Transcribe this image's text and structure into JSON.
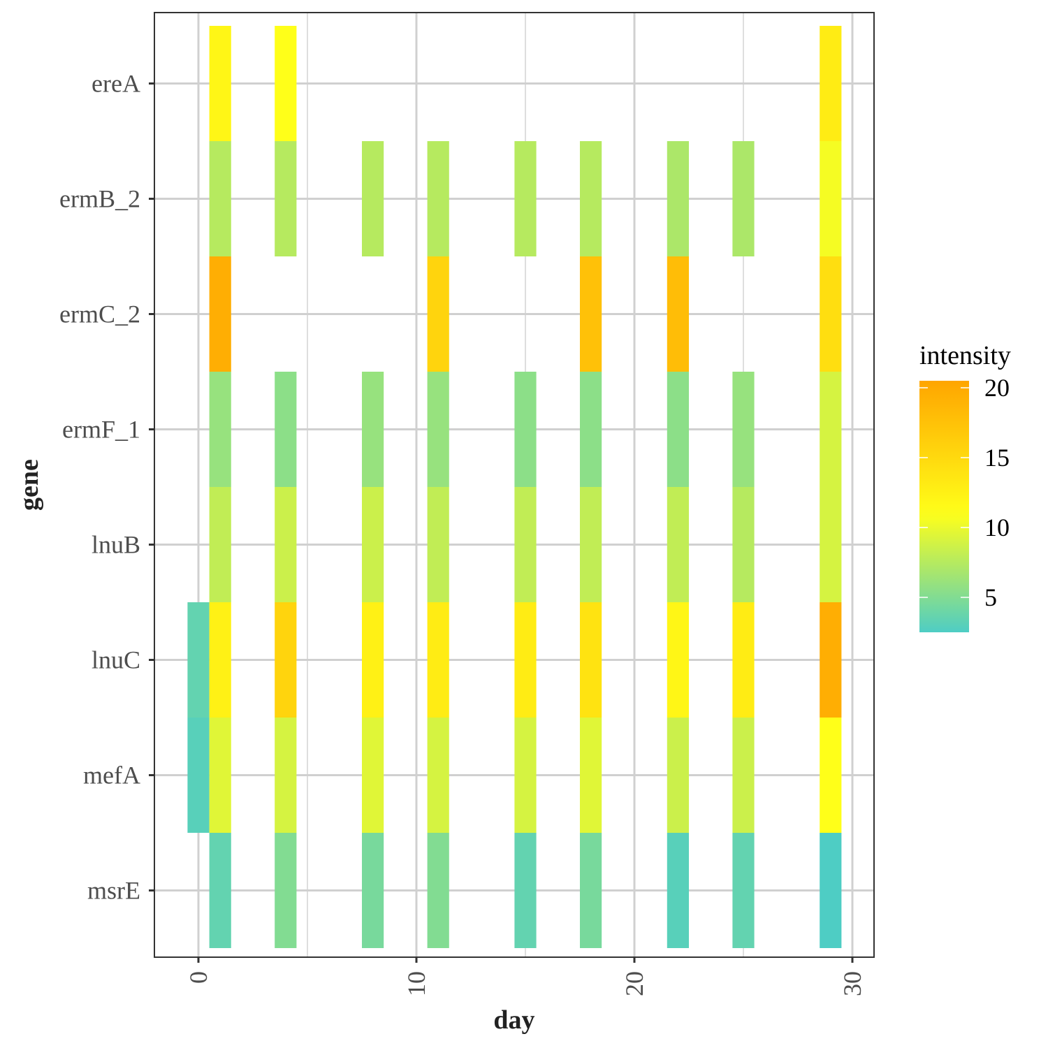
{
  "chart_data": {
    "type": "heatmap",
    "xlabel": "day",
    "ylabel": "gene",
    "xlim": [
      -2,
      31
    ],
    "x_ticks": [
      0,
      10,
      20,
      30
    ],
    "x_tick_labels": [
      "0",
      "10",
      "20",
      "30"
    ],
    "genes": [
      "ereA",
      "ermB_2",
      "ermC_2",
      "ermF_1",
      "lnuB",
      "lnuC",
      "mefA",
      "msrE"
    ],
    "tile_width_days": 1,
    "grid": true,
    "legend": {
      "title": "intensity",
      "position": "right",
      "ticks": [
        5,
        10,
        15,
        20
      ],
      "tick_labels": [
        "5",
        "10",
        "15",
        "20"
      ],
      "range": [
        2.5,
        20.5
      ],
      "colors": [
        "#4ecdc4",
        "#ffff19",
        "#ffa500"
      ]
    },
    "cells": [
      {
        "gene": "ereA",
        "day": 1,
        "value": 12
      },
      {
        "gene": "ereA",
        "day": 4,
        "value": 11
      },
      {
        "gene": "ereA",
        "day": 29,
        "value": 13
      },
      {
        "gene": "ermB_2",
        "day": 1,
        "value": 7.5
      },
      {
        "gene": "ermB_2",
        "day": 4,
        "value": 7.5
      },
      {
        "gene": "ermB_2",
        "day": 8,
        "value": 7.5
      },
      {
        "gene": "ermB_2",
        "day": 11,
        "value": 7.5
      },
      {
        "gene": "ermB_2",
        "day": 15,
        "value": 7.5
      },
      {
        "gene": "ermB_2",
        "day": 18,
        "value": 7.5
      },
      {
        "gene": "ermB_2",
        "day": 22,
        "value": 7
      },
      {
        "gene": "ermB_2",
        "day": 25,
        "value": 7
      },
      {
        "gene": "ermB_2",
        "day": 29,
        "value": 10.5
      },
      {
        "gene": "ermC_2",
        "day": 1,
        "value": 19.5
      },
      {
        "gene": "ermC_2",
        "day": 11,
        "value": 15.5
      },
      {
        "gene": "ermC_2",
        "day": 18,
        "value": 17.5
      },
      {
        "gene": "ermC_2",
        "day": 22,
        "value": 18
      },
      {
        "gene": "ermC_2",
        "day": 29,
        "value": 14.5
      },
      {
        "gene": "ermF_1",
        "day": 1,
        "value": 6
      },
      {
        "gene": "ermF_1",
        "day": 4,
        "value": 5.5
      },
      {
        "gene": "ermF_1",
        "day": 8,
        "value": 6
      },
      {
        "gene": "ermF_1",
        "day": 11,
        "value": 6
      },
      {
        "gene": "ermF_1",
        "day": 15,
        "value": 5.5
      },
      {
        "gene": "ermF_1",
        "day": 18,
        "value": 5.5
      },
      {
        "gene": "ermF_1",
        "day": 22,
        "value": 5.5
      },
      {
        "gene": "ermF_1",
        "day": 25,
        "value": 6
      },
      {
        "gene": "ermF_1",
        "day": 29,
        "value": 9
      },
      {
        "gene": "lnuB",
        "day": 1,
        "value": 8
      },
      {
        "gene": "lnuB",
        "day": 4,
        "value": 8.5
      },
      {
        "gene": "lnuB",
        "day": 8,
        "value": 8.5
      },
      {
        "gene": "lnuB",
        "day": 11,
        "value": 8
      },
      {
        "gene": "lnuB",
        "day": 15,
        "value": 8
      },
      {
        "gene": "lnuB",
        "day": 18,
        "value": 8
      },
      {
        "gene": "lnuB",
        "day": 22,
        "value": 8
      },
      {
        "gene": "lnuB",
        "day": 25,
        "value": 7.5
      },
      {
        "gene": "lnuB",
        "day": 29,
        "value": 9
      },
      {
        "gene": "lnuC",
        "day": 0,
        "value": 3.5
      },
      {
        "gene": "lnuC",
        "day": 1,
        "value": 12.5
      },
      {
        "gene": "lnuC",
        "day": 4,
        "value": 15.5
      },
      {
        "gene": "lnuC",
        "day": 8,
        "value": 12.5
      },
      {
        "gene": "lnuC",
        "day": 11,
        "value": 13
      },
      {
        "gene": "lnuC",
        "day": 15,
        "value": 13
      },
      {
        "gene": "lnuC",
        "day": 18,
        "value": 14
      },
      {
        "gene": "lnuC",
        "day": 22,
        "value": 12
      },
      {
        "gene": "lnuC",
        "day": 25,
        "value": 13
      },
      {
        "gene": "lnuC",
        "day": 29,
        "value": 19.5
      },
      {
        "gene": "mefA",
        "day": 0,
        "value": 3
      },
      {
        "gene": "mefA",
        "day": 1,
        "value": 9.5
      },
      {
        "gene": "mefA",
        "day": 4,
        "value": 9
      },
      {
        "gene": "mefA",
        "day": 8,
        "value": 9.5
      },
      {
        "gene": "mefA",
        "day": 11,
        "value": 9
      },
      {
        "gene": "mefA",
        "day": 15,
        "value": 9
      },
      {
        "gene": "mefA",
        "day": 18,
        "value": 9.5
      },
      {
        "gene": "mefA",
        "day": 22,
        "value": 8.5
      },
      {
        "gene": "mefA",
        "day": 25,
        "value": 8.5
      },
      {
        "gene": "mefA",
        "day": 29,
        "value": 11
      },
      {
        "gene": "msrE",
        "day": 1,
        "value": 3.5
      },
      {
        "gene": "msrE",
        "day": 4,
        "value": 5
      },
      {
        "gene": "msrE",
        "day": 8,
        "value": 4.5
      },
      {
        "gene": "msrE",
        "day": 11,
        "value": 5
      },
      {
        "gene": "msrE",
        "day": 15,
        "value": 3.5
      },
      {
        "gene": "msrE",
        "day": 18,
        "value": 4.5
      },
      {
        "gene": "msrE",
        "day": 22,
        "value": 3
      },
      {
        "gene": "msrE",
        "day": 25,
        "value": 3.5
      },
      {
        "gene": "msrE",
        "day": 29,
        "value": 2.5
      }
    ]
  }
}
